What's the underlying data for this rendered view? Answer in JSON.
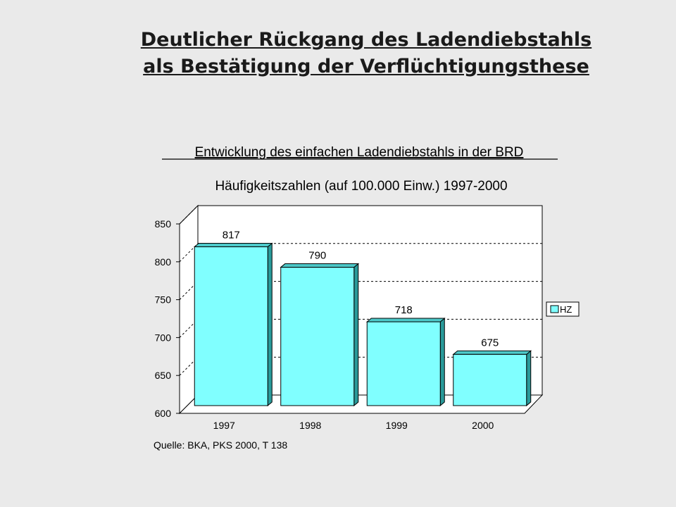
{
  "slide": {
    "title_line1": "Deutlicher Rückgang des Ladendiebstahls",
    "title_line2": "als Bestätigung der Verflüchtigungsthese"
  },
  "chart_data": {
    "type": "bar",
    "title": "Entwicklung des einfachen Ladendiebstahls in der BRD",
    "subtitle": "Häufigkeitszahlen (auf 100.000 Einw.) 1997-2000",
    "categories": [
      "1997",
      "1998",
      "1999",
      "2000"
    ],
    "series": [
      {
        "name": "HZ",
        "values": [
          817,
          790,
          718,
          675
        ],
        "color": "#80ffff"
      }
    ],
    "ylim": [
      600,
      850
    ],
    "yticks": [
      600,
      650,
      700,
      750,
      800,
      850
    ],
    "grid": true,
    "legend_position": "right",
    "source": "Quelle: BKA, PKS 2000, T 138"
  }
}
